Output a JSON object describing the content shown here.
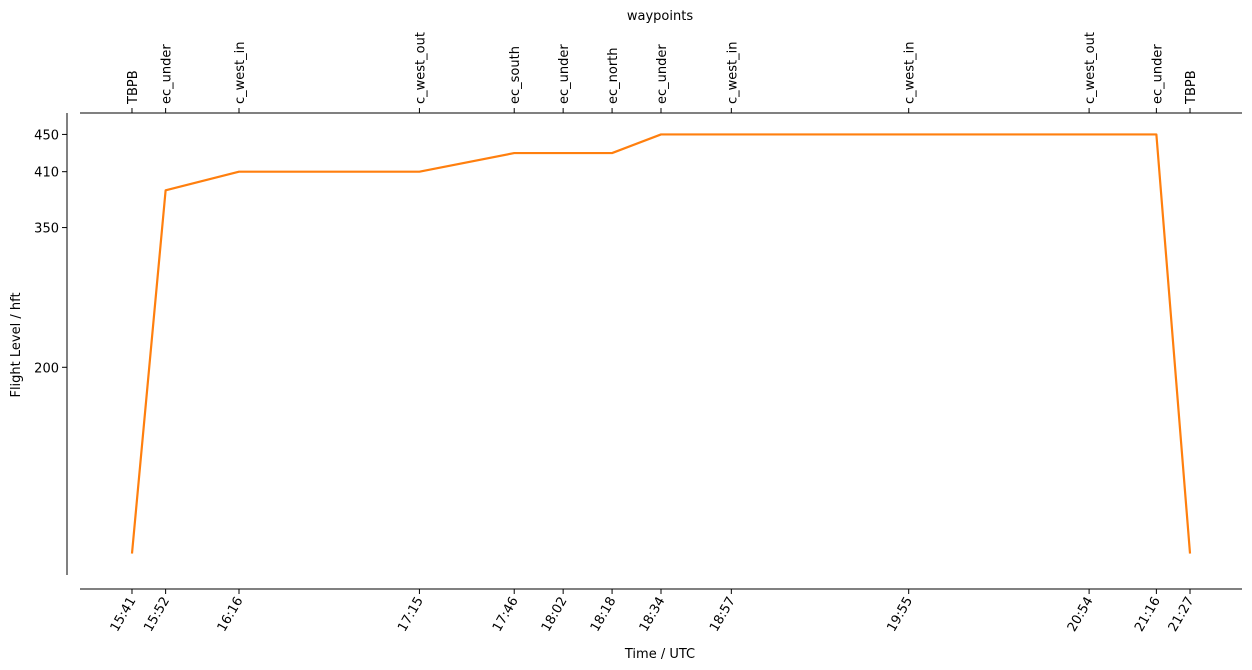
{
  "chart_data": {
    "type": "line",
    "top_axis_label": "waypoints",
    "x_label": "Time / UTC",
    "y_label": "Flight Level / hft",
    "x": [
      "15:41",
      "15:52",
      "16:16",
      "17:15",
      "17:46",
      "18:02",
      "18:18",
      "18:34",
      "18:57",
      "19:55",
      "20:54",
      "21:16",
      "21:27"
    ],
    "waypoints": [
      "TBPB",
      "ec_under",
      "c_west_in",
      "c_west_out",
      "ec_south",
      "ec_under",
      "ec_north",
      "ec_under",
      "c_west_in",
      "c_west_in",
      "c_west_out",
      "ec_under",
      "TBPB"
    ],
    "values": [
      0,
      390,
      410,
      410,
      430,
      430,
      430,
      450,
      450,
      450,
      450,
      450,
      0
    ],
    "color": "#ff7f0e",
    "xlim": [
      "15:24",
      "21:44"
    ],
    "xticks": [
      "15:41",
      "15:52",
      "16:16",
      "17:15",
      "17:46",
      "18:02",
      "18:18",
      "18:34",
      "18:57",
      "19:55",
      "20:54",
      "21:16",
      "21:27"
    ],
    "ylim": [
      -23,
      473
    ],
    "yticks": [
      200,
      350,
      410,
      450
    ],
    "grid": false
  }
}
